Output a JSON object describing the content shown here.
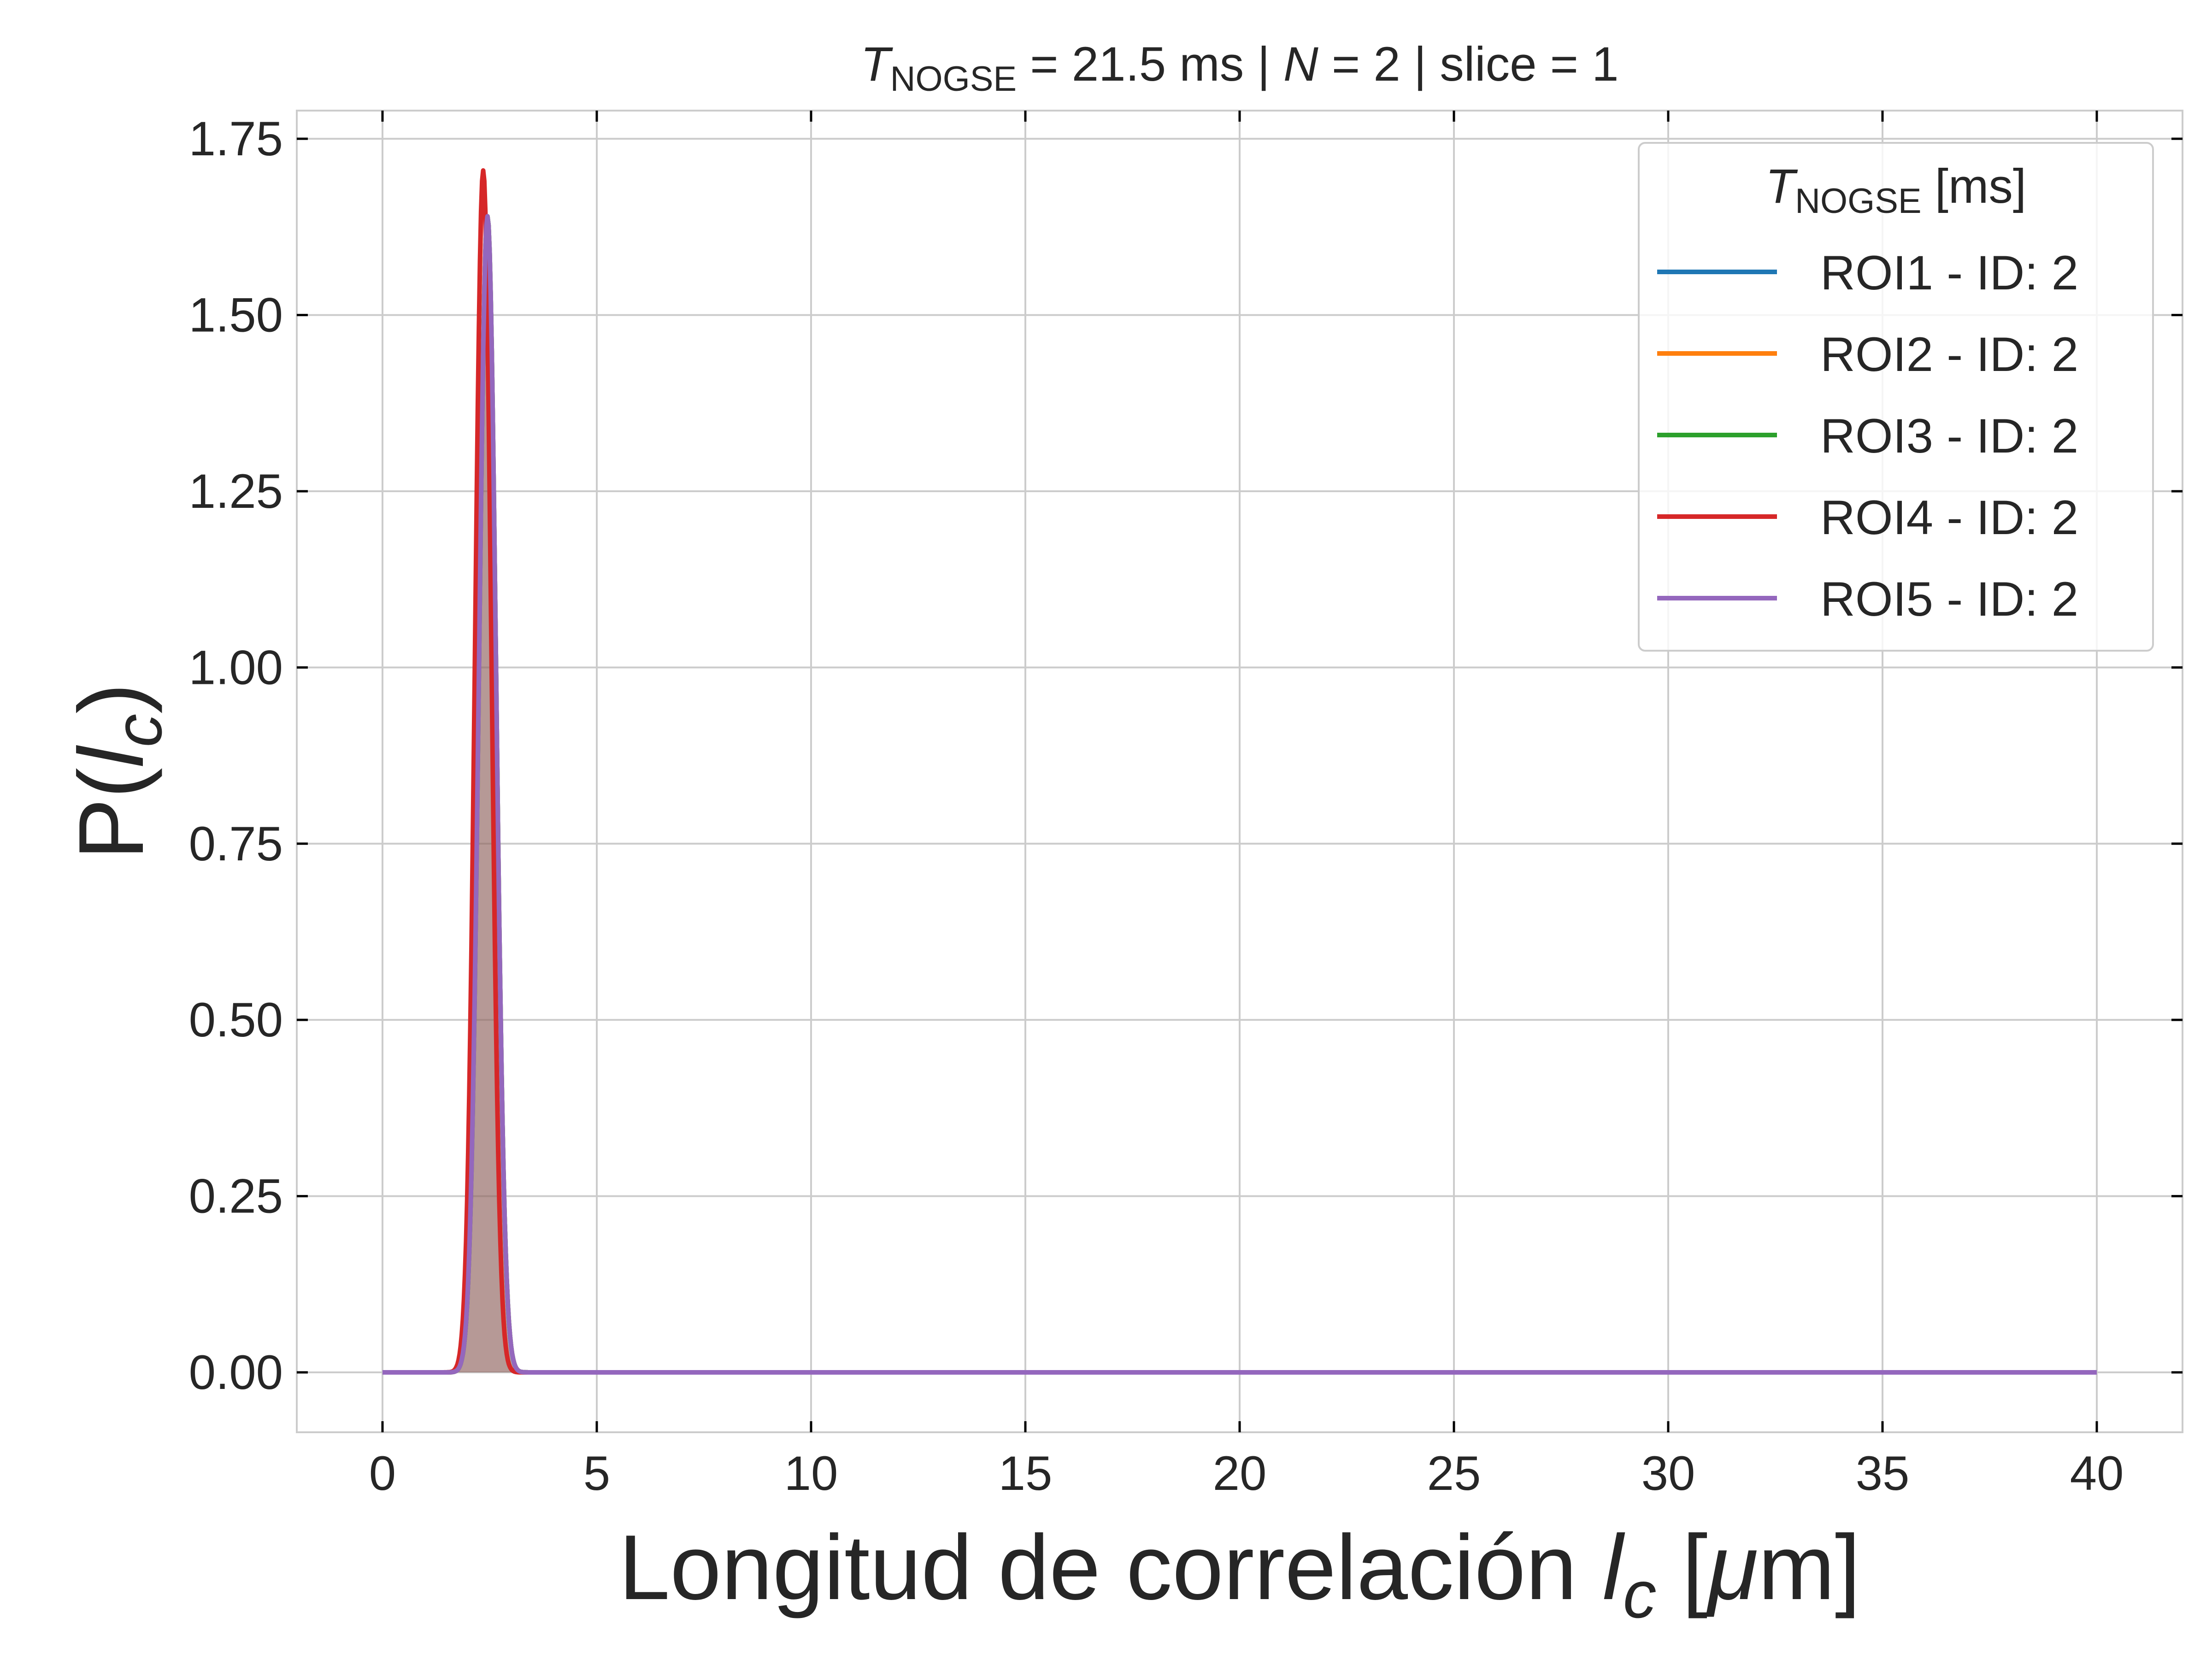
{
  "chart_data": {
    "type": "line",
    "title": {
      "sym": "T",
      "sub": "NOGSE",
      "rest1": " = 21.5 ms | ",
      "nsym": "N",
      "rest2": " = 2 | slice = 1"
    },
    "xlabel": {
      "text": "Longitud de correlación ",
      "sym": "l",
      "sub": "c",
      "unit_open": " [",
      "unit_mu": "μ",
      "unit_close": "m]"
    },
    "ylabel": {
      "text": "P(",
      "sym": "l",
      "sub": "c",
      "close": ")"
    },
    "xlim": [
      -2,
      42
    ],
    "ylim": [
      -0.085,
      1.79
    ],
    "xticks": [
      0,
      5,
      10,
      15,
      20,
      25,
      30,
      35,
      40
    ],
    "xtick_labels": [
      "0",
      "5",
      "10",
      "15",
      "20",
      "25",
      "30",
      "35",
      "40"
    ],
    "yticks": [
      0,
      0.25,
      0.5,
      0.75,
      1.0,
      1.25,
      1.5,
      1.75
    ],
    "ytick_labels": [
      "0.00",
      "0.25",
      "0.50",
      "0.75",
      "1.00",
      "1.25",
      "1.50",
      "1.75"
    ],
    "grid": true,
    "legend": {
      "title_sym": "T",
      "title_sub": "NOGSE",
      "title_rest": " [ms]",
      "placement": "top-right"
    },
    "x_domain": [
      0,
      40
    ],
    "series": [
      {
        "name": "ROI1 - ID: 2",
        "color": "#1f77b4",
        "peak_x": 2.45,
        "peak_y": 1.64,
        "sigma": 0.2,
        "filled": true
      },
      {
        "name": "ROI2 - ID: 2",
        "color": "#ff7f0e",
        "peak_x": 2.45,
        "peak_y": 1.64,
        "sigma": 0.2,
        "filled": true
      },
      {
        "name": "ROI3 - ID: 2",
        "color": "#2ca02c",
        "peak_x": 2.45,
        "peak_y": 1.64,
        "sigma": 0.2,
        "filled": true
      },
      {
        "name": "ROI4 - ID: 2",
        "color": "#d62728",
        "peak_x": 2.35,
        "peak_y": 1.705,
        "sigma": 0.19,
        "filled": true
      },
      {
        "name": "ROI5 - ID: 2",
        "color": "#9467bd",
        "peak_x": 2.45,
        "peak_y": 1.64,
        "sigma": 0.2,
        "filled": true
      }
    ]
  }
}
